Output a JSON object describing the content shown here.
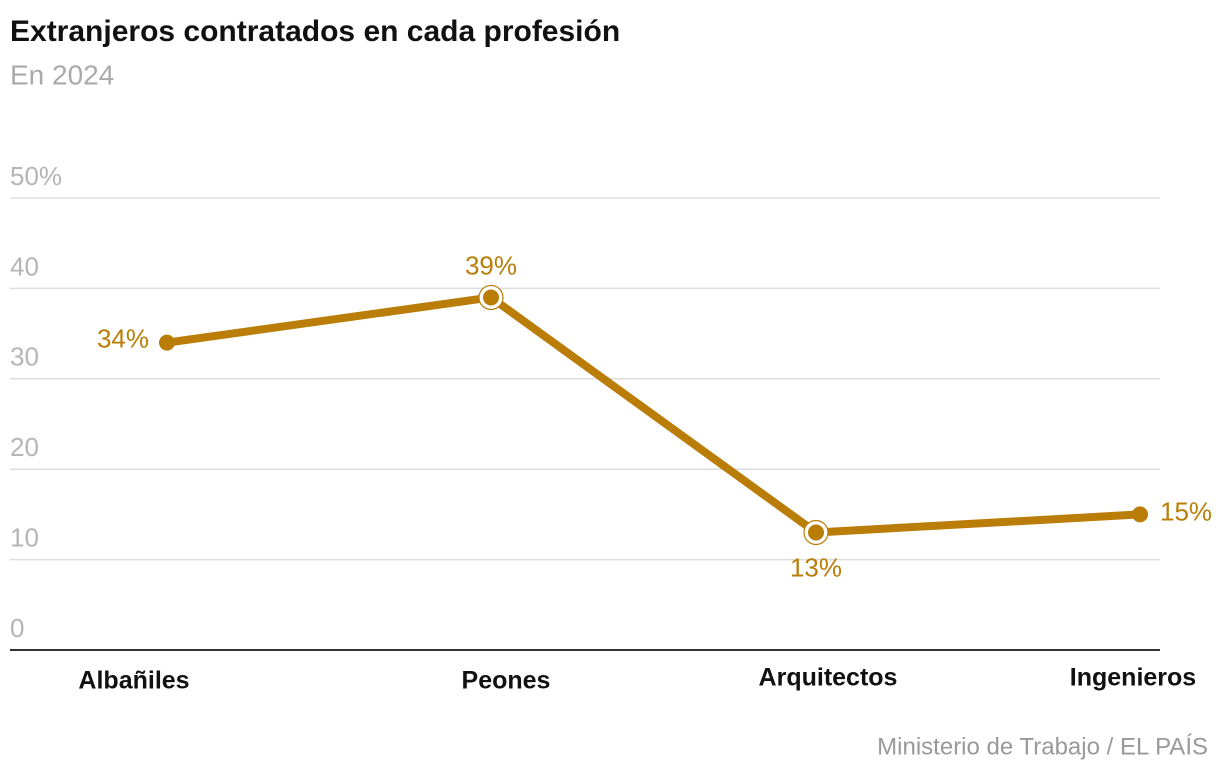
{
  "chart_data": {
    "type": "line",
    "title": "Extranjeros contratados en cada profesión",
    "subtitle": "En 2024",
    "source": "Ministerio de Trabajo / EL PAÍS",
    "categories": [
      "Albañiles",
      "Peones",
      "Arquitectos",
      "Ingenieros"
    ],
    "series": [
      {
        "name": "Extranjeros contratados",
        "color": "#b97d08",
        "values": [
          34,
          39,
          13,
          15
        ],
        "value_labels": [
          "34%",
          "39%",
          "13%",
          "15%"
        ]
      }
    ],
    "ylim": [
      0,
      50
    ],
    "yticks": [
      0,
      10,
      20,
      30,
      40,
      {
        "value": 50,
        "label": "50%"
      }
    ],
    "grid": true
  }
}
